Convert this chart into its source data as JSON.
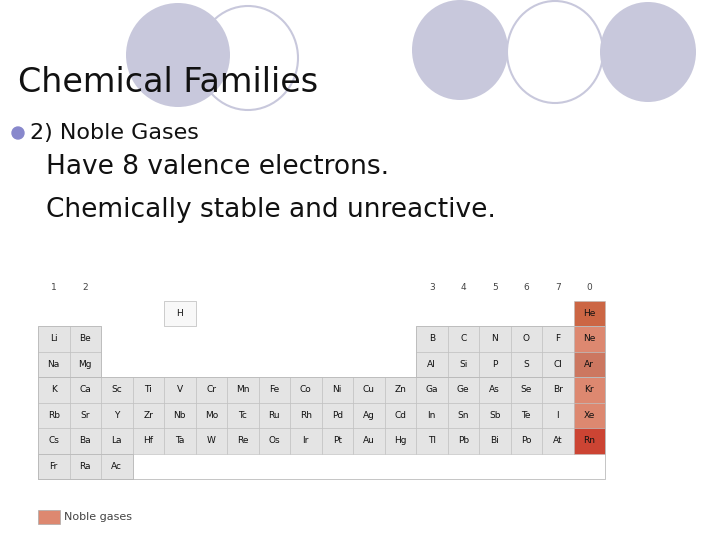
{
  "title": "Chemical Families",
  "bullet1": "2) Noble Gases",
  "sub1": "Have 8 valence electrons.",
  "sub2": "Chemically stable and unreactive.",
  "bg_color": "#ffffff",
  "title_fontsize": 24,
  "bullet_fontsize": 16,
  "sub_fontsize": 19,
  "circle_color": "#c8c8dc",
  "circle_outline_color": "#c8c8dc",
  "bullet_color": "#8888cc",
  "sub_circle_color": "#aaaacc",
  "noble_colors": {
    "He": "#cc6644",
    "Ne": "#dd8870",
    "Ar": "#cc7760",
    "Kr": "#dd8870",
    "Xe": "#dd8870",
    "Rn": "#cc4433"
  },
  "table_cell_color": "#e4e4e4",
  "table_border_color": "#aaaaaa",
  "legend_color": "#dd8870",
  "rows": [
    {
      "row": 0,
      "elements": [
        {
          "sym": "H",
          "col": 4,
          "noble": false
        }
      ]
    },
    {
      "row": 1,
      "elements": [
        {
          "sym": "Li",
          "col": 0,
          "noble": false
        },
        {
          "sym": "Be",
          "col": 1,
          "noble": false
        },
        {
          "sym": "B",
          "col": 12,
          "noble": false
        },
        {
          "sym": "C",
          "col": 13,
          "noble": false
        },
        {
          "sym": "N",
          "col": 14,
          "noble": false
        },
        {
          "sym": "O",
          "col": 15,
          "noble": false
        },
        {
          "sym": "F",
          "col": 16,
          "noble": false
        },
        {
          "sym": "Ne",
          "col": 17,
          "noble": true
        }
      ]
    },
    {
      "row": 2,
      "elements": [
        {
          "sym": "Na",
          "col": 0,
          "noble": false
        },
        {
          "sym": "Mg",
          "col": 1,
          "noble": false
        },
        {
          "sym": "Al",
          "col": 12,
          "noble": false
        },
        {
          "sym": "Si",
          "col": 13,
          "noble": false
        },
        {
          "sym": "P",
          "col": 14,
          "noble": false
        },
        {
          "sym": "S",
          "col": 15,
          "noble": false
        },
        {
          "sym": "Cl",
          "col": 16,
          "noble": false
        },
        {
          "sym": "Ar",
          "col": 17,
          "noble": true
        }
      ]
    },
    {
      "row": 3,
      "elements": [
        {
          "sym": "K",
          "col": 0,
          "noble": false
        },
        {
          "sym": "Ca",
          "col": 1,
          "noble": false
        },
        {
          "sym": "Sc",
          "col": 2,
          "noble": false
        },
        {
          "sym": "Ti",
          "col": 3,
          "noble": false
        },
        {
          "sym": "V",
          "col": 4,
          "noble": false
        },
        {
          "sym": "Cr",
          "col": 5,
          "noble": false
        },
        {
          "sym": "Mn",
          "col": 6,
          "noble": false
        },
        {
          "sym": "Fe",
          "col": 7,
          "noble": false
        },
        {
          "sym": "Co",
          "col": 8,
          "noble": false
        },
        {
          "sym": "Ni",
          "col": 9,
          "noble": false
        },
        {
          "sym": "Cu",
          "col": 10,
          "noble": false
        },
        {
          "sym": "Zn",
          "col": 11,
          "noble": false
        },
        {
          "sym": "Ga",
          "col": 12,
          "noble": false
        },
        {
          "sym": "Ge",
          "col": 13,
          "noble": false
        },
        {
          "sym": "As",
          "col": 14,
          "noble": false
        },
        {
          "sym": "Se",
          "col": 15,
          "noble": false
        },
        {
          "sym": "Br",
          "col": 16,
          "noble": false
        },
        {
          "sym": "Kr",
          "col": 17,
          "noble": true
        }
      ]
    },
    {
      "row": 4,
      "elements": [
        {
          "sym": "Rb",
          "col": 0,
          "noble": false
        },
        {
          "sym": "Sr",
          "col": 1,
          "noble": false
        },
        {
          "sym": "Y",
          "col": 2,
          "noble": false
        },
        {
          "sym": "Zr",
          "col": 3,
          "noble": false
        },
        {
          "sym": "Nb",
          "col": 4,
          "noble": false
        },
        {
          "sym": "Mo",
          "col": 5,
          "noble": false
        },
        {
          "sym": "Tc",
          "col": 6,
          "noble": false
        },
        {
          "sym": "Ru",
          "col": 7,
          "noble": false
        },
        {
          "sym": "Rh",
          "col": 8,
          "noble": false
        },
        {
          "sym": "Pd",
          "col": 9,
          "noble": false
        },
        {
          "sym": "Ag",
          "col": 10,
          "noble": false
        },
        {
          "sym": "Cd",
          "col": 11,
          "noble": false
        },
        {
          "sym": "In",
          "col": 12,
          "noble": false
        },
        {
          "sym": "Sn",
          "col": 13,
          "noble": false
        },
        {
          "sym": "Sb",
          "col": 14,
          "noble": false
        },
        {
          "sym": "Te",
          "col": 15,
          "noble": false
        },
        {
          "sym": "I",
          "col": 16,
          "noble": false
        },
        {
          "sym": "Xe",
          "col": 17,
          "noble": true
        }
      ]
    },
    {
      "row": 5,
      "elements": [
        {
          "sym": "Cs",
          "col": 0,
          "noble": false
        },
        {
          "sym": "Ba",
          "col": 1,
          "noble": false
        },
        {
          "sym": "La",
          "col": 2,
          "noble": false
        },
        {
          "sym": "Hf",
          "col": 3,
          "noble": false
        },
        {
          "sym": "Ta",
          "col": 4,
          "noble": false
        },
        {
          "sym": "W",
          "col": 5,
          "noble": false
        },
        {
          "sym": "Re",
          "col": 6,
          "noble": false
        },
        {
          "sym": "Os",
          "col": 7,
          "noble": false
        },
        {
          "sym": "Ir",
          "col": 8,
          "noble": false
        },
        {
          "sym": "Pt",
          "col": 9,
          "noble": false
        },
        {
          "sym": "Au",
          "col": 10,
          "noble": false
        },
        {
          "sym": "Hg",
          "col": 11,
          "noble": false
        },
        {
          "sym": "Tl",
          "col": 12,
          "noble": false
        },
        {
          "sym": "Pb",
          "col": 13,
          "noble": false
        },
        {
          "sym": "Bi",
          "col": 14,
          "noble": false
        },
        {
          "sym": "Po",
          "col": 15,
          "noble": false
        },
        {
          "sym": "At",
          "col": 16,
          "noble": false
        },
        {
          "sym": "Rn",
          "col": 17,
          "noble": true
        }
      ]
    },
    {
      "row": 6,
      "elements": [
        {
          "sym": "Fr",
          "col": 0,
          "noble": false
        },
        {
          "sym": "Ra",
          "col": 1,
          "noble": false
        },
        {
          "sym": "Ac",
          "col": 2,
          "noble": false
        }
      ]
    }
  ],
  "group_headers": [
    "1",
    "2",
    "",
    "",
    "",
    "",
    "",
    "",
    "",
    "",
    "",
    "",
    "3",
    "4",
    "5",
    "6",
    "7",
    "0"
  ]
}
